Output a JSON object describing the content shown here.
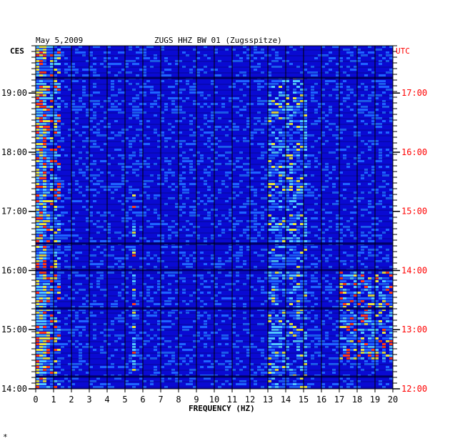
{
  "header": {
    "date": "May 5,2009",
    "station": "ZUGS HHZ BW 01 (Zugsspitze)"
  },
  "left_axis_label": "CES",
  "right_axis_label": "UTC",
  "footer_mark": "*",
  "chart_data": {
    "type": "heatmap",
    "title": "ZUGS HHZ BW 01 (Zugsspitze)",
    "date": "May 5,2009",
    "xlabel": "FREQUENCY (HZ)",
    "xlim": [
      0,
      20
    ],
    "x_ticks": [
      "0",
      "1",
      "2",
      "3",
      "4",
      "5",
      "6",
      "7",
      "8",
      "9",
      "10",
      "11",
      "12",
      "13",
      "14",
      "15",
      "16",
      "17",
      "18",
      "19",
      "20"
    ],
    "y_left_label": "CES",
    "y_left_ticks": [
      "19:00",
      "18:00",
      "17:00",
      "16:00",
      "15:00",
      "14:00"
    ],
    "y_right_label": "UTC",
    "y_right_ticks": [
      "17:00",
      "16:00",
      "15:00",
      "14:00",
      "13:00",
      "12:00"
    ],
    "y_left_range_hours": [
      14.0,
      19.8
    ],
    "grid": true,
    "colors": {
      "background": "#0a0ad2",
      "low": "#0a14e6",
      "mid": "#1e64ff",
      "high": "#50c8ff",
      "peak": "#e6e63c",
      "max": "#ff3c14",
      "grid": "#000000",
      "right_axis": "#ff0000"
    },
    "features": [
      {
        "name": "low-frequency noise",
        "x_range": [
          0,
          1.2
        ],
        "y_range": [
          14.0,
          19.8
        ],
        "intensity": 0.8
      },
      {
        "name": "band 13-15 Hz",
        "x_range": [
          13,
          15
        ],
        "y_range": [
          14.0,
          19.3
        ],
        "intensity": 0.55
      },
      {
        "name": "high-frequency burst",
        "x_range": [
          17,
          20
        ],
        "y_range": [
          14.5,
          16.0
        ],
        "intensity": 0.85
      },
      {
        "name": "line 5.4 Hz",
        "x_range": [
          5.3,
          5.5
        ],
        "y_range": [
          14.3,
          17.3
        ],
        "intensity": 0.7
      }
    ],
    "dark_gaps_hours": [
      14.2,
      15.35,
      16.0,
      16.45,
      19.25
    ]
  }
}
